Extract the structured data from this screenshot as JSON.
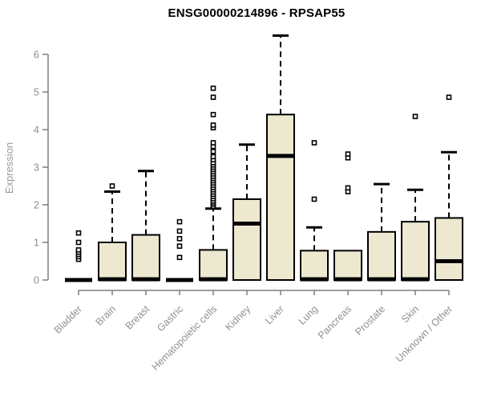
{
  "chart_data": {
    "type": "boxplot",
    "title": "ENSG00000214896 - RPSAP55",
    "xlabel": "",
    "ylabel": "Expression",
    "ylim": [
      0,
      6.6
    ],
    "yticks": [
      0,
      1,
      2,
      3,
      4,
      5,
      6
    ],
    "grid": false,
    "legend": "none",
    "categories": [
      "Bladder",
      "Brain",
      "Breast",
      "Gastric",
      "Hematopoietic cells",
      "Kidney",
      "Liver",
      "Lung",
      "Pancreas",
      "Prostate",
      "Skin",
      "Unknown / Other"
    ],
    "series": [
      {
        "label": "Bladder",
        "q1": 0,
        "median": 0,
        "q3": 0,
        "whisker_low": 0,
        "whisker_high": 0,
        "outliers": [
          0.55,
          0.62,
          0.68,
          0.74,
          0.8,
          1.0,
          1.25
        ]
      },
      {
        "label": "Brain",
        "q1": 0,
        "median": 0.02,
        "q3": 1.0,
        "whisker_low": 0,
        "whisker_high": 2.35,
        "outliers": [
          2.5
        ]
      },
      {
        "label": "Breast",
        "q1": 0,
        "median": 0.02,
        "q3": 1.2,
        "whisker_low": 0,
        "whisker_high": 2.9,
        "outliers": []
      },
      {
        "label": "Gastric",
        "q1": 0,
        "median": 0,
        "q3": 0,
        "whisker_low": 0,
        "whisker_high": 0,
        "outliers": [
          0.6,
          0.9,
          1.1,
          1.3,
          1.55
        ]
      },
      {
        "label": "Hematopoietic cells",
        "q1": 0,
        "median": 0.02,
        "q3": 0.8,
        "whisker_low": 0,
        "whisker_high": 1.9,
        "outliers": [
          1.95,
          2.0,
          2.05,
          2.1,
          2.16,
          2.22,
          2.28,
          2.34,
          2.4,
          2.46,
          2.52,
          2.58,
          2.64,
          2.7,
          2.76,
          2.82,
          2.88,
          2.94,
          3.0,
          3.06,
          3.12,
          3.2,
          3.28,
          3.42,
          3.55,
          3.65,
          4.05,
          4.12,
          4.4,
          4.86,
          5.1
        ]
      },
      {
        "label": "Kidney",
        "q1": 0,
        "median": 1.5,
        "q3": 2.15,
        "whisker_low": 0,
        "whisker_high": 3.6,
        "outliers": []
      },
      {
        "label": "Liver",
        "q1": 0,
        "median": 3.3,
        "q3": 4.4,
        "whisker_low": 0,
        "whisker_high": 6.5,
        "outliers": []
      },
      {
        "label": "Lung",
        "q1": 0,
        "median": 0.02,
        "q3": 0.78,
        "whisker_low": 0,
        "whisker_high": 1.4,
        "outliers": [
          2.15,
          3.65
        ]
      },
      {
        "label": "Pancreas",
        "q1": 0,
        "median": 0.02,
        "q3": 0.78,
        "whisker_low": 0,
        "whisker_high": 0.78,
        "outliers": [
          2.35,
          2.45,
          3.25,
          3.35
        ]
      },
      {
        "label": "Prostate",
        "q1": 0,
        "median": 0.02,
        "q3": 1.28,
        "whisker_low": 0,
        "whisker_high": 2.55,
        "outliers": []
      },
      {
        "label": "Skin",
        "q1": 0,
        "median": 0.02,
        "q3": 1.55,
        "whisker_low": 0,
        "whisker_high": 2.4,
        "outliers": [
          4.35
        ]
      },
      {
        "label": "Unknown / Other",
        "q1": 0,
        "median": 0.5,
        "q3": 1.65,
        "whisker_low": 0,
        "whisker_high": 3.4,
        "outliers": [
          4.86
        ]
      }
    ],
    "colors": {
      "box_fill": "#EDE8D0",
      "box_border": "#000000",
      "median": "#000000",
      "whisker": "#000000",
      "outlier_stroke": "#000000",
      "axis": "#7e7e7e",
      "tick_label": "#909090",
      "axis_title": "#9a9a9a",
      "title": "#000000",
      "background": "#ffffff"
    }
  }
}
